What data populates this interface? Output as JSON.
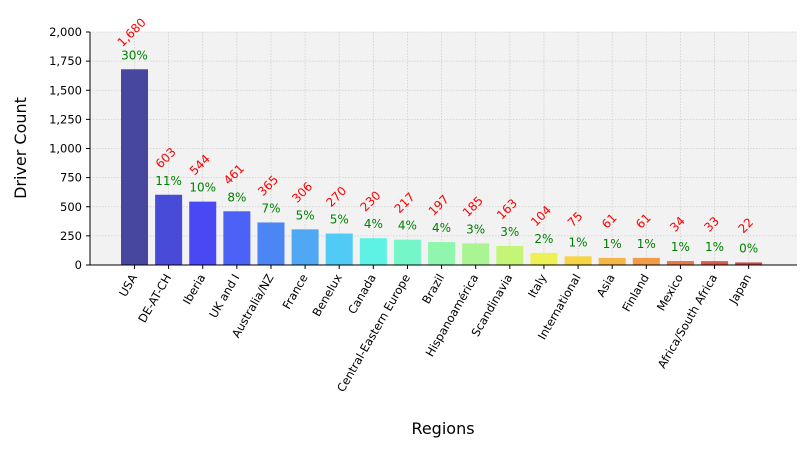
{
  "chart_data": {
    "type": "bar",
    "xlabel": "Regions",
    "ylabel": "Driver Count",
    "ylim": [
      0,
      2000
    ],
    "yticks": [
      "0",
      "250",
      "500",
      "750",
      "1,000",
      "1,250",
      "1,500",
      "1,750",
      "2,000"
    ],
    "ytick_values": [
      0,
      250,
      500,
      750,
      1000,
      1250,
      1500,
      1750,
      2000
    ],
    "grid": true,
    "categories": [
      "USA",
      "DE-AT-CH",
      "Iberia",
      "UK and I",
      "Australia/NZ",
      "France",
      "Benelux",
      "Canada",
      "Central-Eastern Europe",
      "Brazil",
      "Hispanoamérica",
      "Scandinavia",
      "Italy",
      "International",
      "Asia",
      "Finland",
      "Mexico",
      "Africa/South Africa",
      "Japan"
    ],
    "values": [
      1680,
      603,
      544,
      461,
      365,
      306,
      270,
      230,
      217,
      197,
      185,
      163,
      104,
      75,
      61,
      61,
      34,
      33,
      22
    ],
    "value_labels": [
      "1,680",
      "603",
      "544",
      "461",
      "365",
      "306",
      "270",
      "230",
      "217",
      "197",
      "185",
      "163",
      "104",
      "75",
      "61",
      "61",
      "34",
      "33",
      "22"
    ],
    "percent_labels": [
      "30%",
      "11%",
      "10%",
      "8%",
      "7%",
      "5%",
      "5%",
      "4%",
      "4%",
      "4%",
      "3%",
      "3%",
      "2%",
      "1%",
      "1%",
      "1%",
      "1%",
      "1%",
      "0%"
    ],
    "colors": {
      "bars": [
        "#3b3a99",
        "#3b3dd6",
        "#3c3cf4",
        "#3f57f6",
        "#3e7ef4",
        "#44a3f5",
        "#45c8f5",
        "#52f2e3",
        "#6cf6c6",
        "#88f6a8",
        "#a4f58c",
        "#c1f56e",
        "#ecf249",
        "#f6d13a",
        "#f5b23c",
        "#f2943b",
        "#e56f3b",
        "#d64e3b",
        "#c73a3a"
      ],
      "value_label": "#ff0000",
      "percent_label": "#008000",
      "plot_background": "#f2f2f2",
      "grid": "#cfcfcf"
    }
  }
}
